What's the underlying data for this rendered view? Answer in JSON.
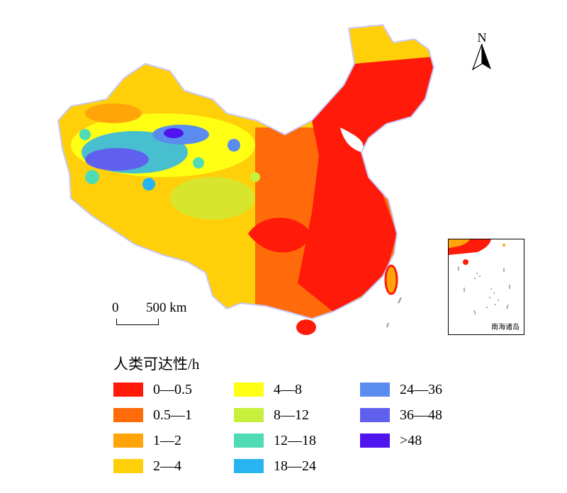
{
  "north_arrow": {
    "letter": "N"
  },
  "scale_bar": {
    "zero_label": "0",
    "distance_label": "500 km"
  },
  "inset": {
    "label": "南海诸岛"
  },
  "legend": {
    "title": "人类可达性/h",
    "items": [
      {
        "label": "0—0.5",
        "color": "#ff1a0a"
      },
      {
        "label": "0.5—1",
        "color": "#ff6a0a"
      },
      {
        "label": "1—2",
        "color": "#ffa50a"
      },
      {
        "label": "2—4",
        "color": "#ffd00a"
      },
      {
        "label": "4—8",
        "color": "#ffff14"
      },
      {
        "label": "8—12",
        "color": "#c6f03c"
      },
      {
        "label": "12—18",
        "color": "#4fdcb4"
      },
      {
        "label": "18—24",
        "color": "#28b4f0"
      },
      {
        "label": "24—36",
        "color": "#5a8cf0"
      },
      {
        "label": "36—48",
        "color": "#6060ee"
      },
      {
        "label": ">48",
        "color": "#5014ee"
      }
    ]
  }
}
